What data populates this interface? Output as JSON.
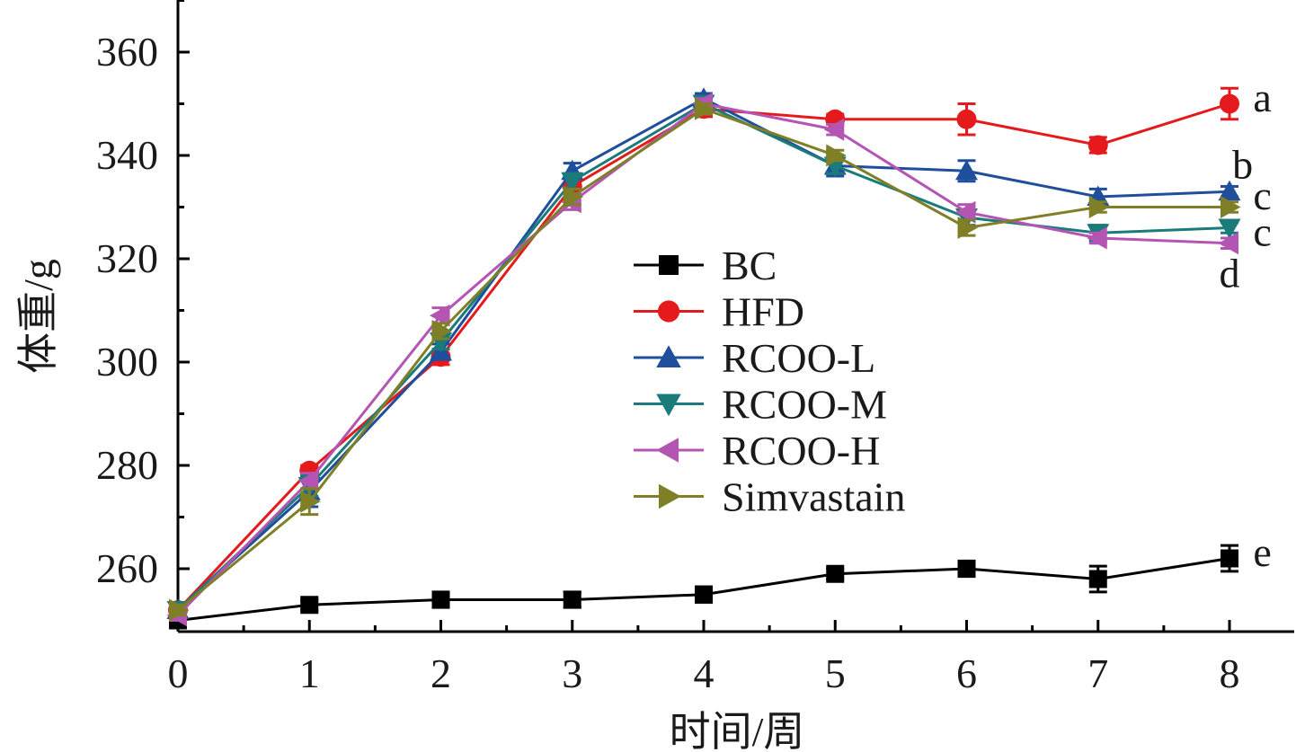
{
  "chart_data": {
    "type": "line",
    "title": "",
    "xlabel": "时间/周",
    "ylabel": "体重/g",
    "x": [
      0,
      1,
      2,
      3,
      4,
      5,
      6,
      7,
      8
    ],
    "xlim": [
      0,
      8.5
    ],
    "ylim": [
      249,
      370
    ],
    "yticks": [
      260,
      280,
      300,
      320,
      340,
      360
    ],
    "grid": false,
    "legend_position": "center-right",
    "series": [
      {
        "name": "BC",
        "color": "#000000",
        "marker": "square",
        "values": [
          250,
          253,
          254,
          254,
          255,
          259,
          260,
          258,
          262
        ],
        "errors": [
          0,
          1,
          1.5,
          1.5,
          1.5,
          1,
          1.5,
          2.5,
          2.5
        ]
      },
      {
        "name": "HFD",
        "color": "#e41a1c",
        "marker": "circle",
        "values": [
          252,
          279,
          301,
          334,
          349,
          347,
          347,
          342,
          350
        ],
        "errors": [
          1,
          1,
          1.5,
          1.5,
          1.5,
          1,
          3,
          1.5,
          3
        ]
      },
      {
        "name": "RCOO-L",
        "color": "#1f4e9c",
        "marker": "triangle-up",
        "values": [
          252,
          275,
          302,
          337,
          351,
          338,
          337,
          332,
          333
        ],
        "errors": [
          1,
          3,
          1.5,
          1.5,
          1,
          2,
          2,
          1.5,
          1
        ]
      },
      {
        "name": "RCOO-M",
        "color": "#1b7b7b",
        "marker": "triangle-down",
        "values": [
          252,
          276,
          304,
          335,
          350,
          338,
          328,
          325,
          326
        ],
        "errors": [
          1,
          2,
          1.5,
          1.5,
          1,
          1.5,
          1.5,
          1.5,
          1
        ]
      },
      {
        "name": "RCOO-H",
        "color": "#b455b4",
        "marker": "triangle-left",
        "values": [
          251,
          277,
          309,
          331,
          350,
          345,
          329,
          324,
          323
        ],
        "errors": [
          1,
          1.5,
          1.5,
          1.5,
          1,
          1,
          1.5,
          1,
          1
        ]
      },
      {
        "name": "Simvastain",
        "color": "#7f7f28",
        "marker": "triangle-right",
        "values": [
          252,
          273,
          306,
          332,
          349,
          340,
          326,
          330,
          330
        ],
        "errors": [
          1,
          2.5,
          1.5,
          1.5,
          1,
          1,
          1.5,
          1,
          1
        ]
      }
    ],
    "annotations": [
      {
        "text": "a",
        "x": 8.25,
        "y": 351
      },
      {
        "text": "b",
        "x": 8.1,
        "y": 338
      },
      {
        "text": "c",
        "x": 8.25,
        "y": 332
      },
      {
        "text": "c",
        "x": 8.25,
        "y": 325
      },
      {
        "text": "d",
        "x": 8.0,
        "y": 317
      },
      {
        "text": "e",
        "x": 8.25,
        "y": 263
      }
    ]
  }
}
